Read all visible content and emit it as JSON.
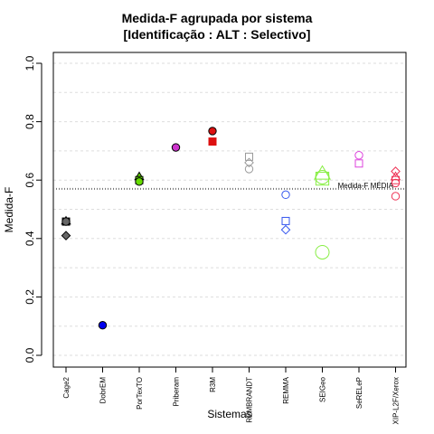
{
  "chart_data": {
    "type": "scatter",
    "title": "Medida-F agrupada por sistema",
    "subtitle": "[Identificação : ALT : Selectivo]",
    "xlabel": "Sistemas",
    "ylabel": "Medida-F",
    "ylim": [
      0,
      1
    ],
    "yticks": [
      "0.0",
      "0.2",
      "0.4",
      "0.6",
      "0.8",
      "1.0"
    ],
    "categories": [
      "Cage2",
      "DobrEM",
      "PorTexTO",
      "Priberam",
      "R3M",
      "REMBRANDT",
      "REMMA",
      "SEIGeo",
      "SeRELeP",
      "XIP-L2F/Xerox"
    ],
    "grid": true,
    "reference_line": {
      "label": "Medida-F MÉDIA",
      "value": 0.57
    },
    "points": [
      {
        "category": "Cage2",
        "shape": "triangle",
        "value": 0.46,
        "fill": "#666666",
        "stroke": "#000000",
        "size": 1
      },
      {
        "category": "Cage2",
        "shape": "square",
        "value": 0.458,
        "fill": "#666666",
        "stroke": "#000000",
        "size": 1
      },
      {
        "category": "Cage2",
        "shape": "circle",
        "value": 0.458,
        "fill": "#666666",
        "stroke": "#000000",
        "size": 1
      },
      {
        "category": "Cage2",
        "shape": "diamond",
        "value": 0.41,
        "fill": "#666666",
        "stroke": "#000000",
        "size": 1
      },
      {
        "category": "DobrEM",
        "shape": "circle",
        "value": 0.103,
        "fill": "#0000ee",
        "stroke": "#000000",
        "size": 1
      },
      {
        "category": "PorTexTO",
        "shape": "triangle",
        "value": 0.612,
        "fill": "#66dd00",
        "stroke": "#000000",
        "size": 1
      },
      {
        "category": "PorTexTO",
        "shape": "square",
        "value": 0.6,
        "fill": "#66dd00",
        "stroke": "#000000",
        "size": 1
      },
      {
        "category": "PorTexTO",
        "shape": "circle",
        "value": 0.595,
        "fill": "#66dd00",
        "stroke": "#000000",
        "size": 1
      },
      {
        "category": "Priberam",
        "shape": "circle",
        "value": 0.712,
        "fill": "#cc33cc",
        "stroke": "#000000",
        "size": 1
      },
      {
        "category": "R3M",
        "shape": "circle",
        "value": 0.768,
        "fill": "#dd1111",
        "stroke": "#000000",
        "size": 1
      },
      {
        "category": "R3M",
        "shape": "square",
        "value": 0.732,
        "fill": "#dd1111",
        "stroke": "#dd1111",
        "size": 1
      },
      {
        "category": "REMBRANDT",
        "shape": "square",
        "value": 0.68,
        "fill": "none",
        "stroke": "#999999",
        "size": 1
      },
      {
        "category": "REMBRANDT",
        "shape": "diamond",
        "value": 0.66,
        "fill": "none",
        "stroke": "#999999",
        "size": 1
      },
      {
        "category": "REMBRANDT",
        "shape": "circle",
        "value": 0.638,
        "fill": "none",
        "stroke": "#999999",
        "size": 1
      },
      {
        "category": "REMMA",
        "shape": "circle",
        "value": 0.55,
        "fill": "none",
        "stroke": "#3355ee",
        "size": 1
      },
      {
        "category": "REMMA",
        "shape": "square",
        "value": 0.46,
        "fill": "none",
        "stroke": "#3355ee",
        "size": 1
      },
      {
        "category": "REMMA",
        "shape": "diamond",
        "value": 0.43,
        "fill": "none",
        "stroke": "#3355ee",
        "size": 1
      },
      {
        "category": "SEIGeo",
        "shape": "triangle",
        "value": 0.622,
        "fill": "none",
        "stroke": "#88ee44",
        "size": 2
      },
      {
        "category": "SEIGeo",
        "shape": "circle",
        "value": 0.61,
        "fill": "none",
        "stroke": "#88ee44",
        "size": 2
      },
      {
        "category": "SEIGeo",
        "shape": "square",
        "value": 0.605,
        "fill": "none",
        "stroke": "#88ee44",
        "size": 2
      },
      {
        "category": "SEIGeo",
        "shape": "circle",
        "value": 0.353,
        "fill": "none",
        "stroke": "#88ee44",
        "size": 2
      },
      {
        "category": "SeRELeP",
        "shape": "circle",
        "value": 0.685,
        "fill": "none",
        "stroke": "#dd44dd",
        "size": 1
      },
      {
        "category": "SeRELeP",
        "shape": "square",
        "value": 0.657,
        "fill": "none",
        "stroke": "#dd44dd",
        "size": 1
      },
      {
        "category": "XIP-L2F/Xerox",
        "shape": "diamond",
        "value": 0.63,
        "fill": "none",
        "stroke": "#ee3355",
        "size": 1
      },
      {
        "category": "XIP-L2F/Xerox",
        "shape": "triangle",
        "value": 0.612,
        "fill": "none",
        "stroke": "#ee3355",
        "size": 1
      },
      {
        "category": "XIP-L2F/Xerox",
        "shape": "square",
        "value": 0.6,
        "fill": "none",
        "stroke": "#ee3355",
        "size": 1
      },
      {
        "category": "XIP-L2F/Xerox",
        "shape": "circle",
        "value": 0.59,
        "fill": "none",
        "stroke": "#ee3355",
        "size": 1
      },
      {
        "category": "XIP-L2F/Xerox",
        "shape": "circle",
        "value": 0.545,
        "fill": "none",
        "stroke": "#ee3355",
        "size": 1
      }
    ]
  }
}
